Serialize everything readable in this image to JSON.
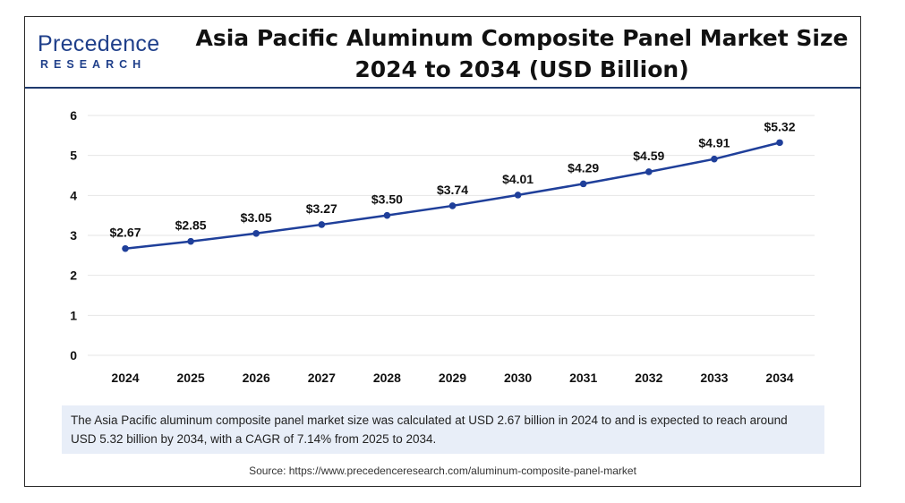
{
  "logo": {
    "line1": "Precedence",
    "line2": "RESEARCH"
  },
  "title_line1": "Asia Pacific Aluminum Composite Panel Market Size",
  "title_line2": "2024 to 2034 (USD Billion)",
  "note": "The Asia Pacific aluminum composite panel market size was calculated at USD 2.67 billion in 2024 to and is expected to reach around USD 5.32 billion by 2034, with a CAGR of 7.14% from 2025 to 2034.",
  "source": "Source: https://www.precedenceresearch.com/aluminum-composite-panel-market",
  "colors": {
    "line": "#1f3f9a",
    "title": "#111111",
    "note_bg": "#e8eef8"
  },
  "chart_data": {
    "type": "line",
    "title": "Asia Pacific Aluminum Composite Panel Market Size 2024 to 2034 (USD Billion)",
    "xlabel": "",
    "ylabel": "",
    "categories": [
      "2024",
      "2025",
      "2026",
      "2027",
      "2028",
      "2029",
      "2030",
      "2031",
      "2032",
      "2033",
      "2034"
    ],
    "values": [
      2.67,
      2.85,
      3.05,
      3.27,
      3.5,
      3.74,
      4.01,
      4.29,
      4.59,
      4.91,
      5.32
    ],
    "data_labels": [
      "$2.67",
      "$2.85",
      "$3.05",
      "$3.27",
      "$3.50",
      "$3.74",
      "$4.01",
      "$4.29",
      "$4.59",
      "$4.91",
      "$5.32"
    ],
    "yticks": [
      "0",
      "1",
      "2",
      "3",
      "4",
      "5",
      "6"
    ],
    "ylim": [
      0,
      6
    ],
    "grid": true,
    "legend": "none"
  }
}
